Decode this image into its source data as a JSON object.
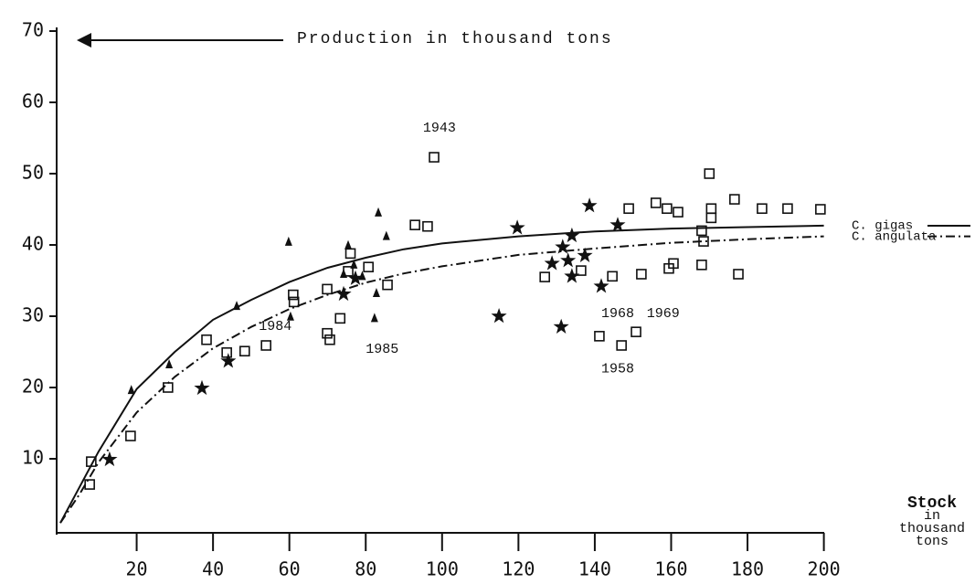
{
  "chart_data": {
    "type": "scatter",
    "title": "Production in thousand tons",
    "x_label": [
      "Stock",
      "in",
      "thousand",
      "tons"
    ],
    "xlim": [
      0,
      200
    ],
    "ylim": [
      0,
      70
    ],
    "xticks": [
      20,
      40,
      60,
      80,
      100,
      120,
      140,
      160,
      180,
      200
    ],
    "yticks": [
      10,
      20,
      30,
      40,
      50,
      60,
      70
    ],
    "series": [
      {
        "marker": "square",
        "color": "#111",
        "x": [
          7.7,
          8.1,
          18.4,
          28.2,
          38.3,
          43.6,
          48.3,
          53.9,
          61,
          61.2,
          69.9,
          69.9,
          70.6,
          73.3,
          75.4,
          76,
          80.7,
          85.7,
          92.9,
          96.2,
          97.9,
          126.9,
          136.4,
          141.2,
          147,
          150.8,
          144.6,
          148.9,
          152.2,
          156,
          158.9,
          159.4,
          160.6,
          161.8,
          168,
          168,
          168.5,
          170,
          170.5,
          170.5,
          176.6,
          177.6,
          183.8,
          190.5,
          199.1
        ],
        "values": [
          6.4,
          9.6,
          13.2,
          20,
          26.7,
          24.9,
          25.1,
          25.9,
          33,
          32,
          33.8,
          27.6,
          26.7,
          29.7,
          36.3,
          38.8,
          36.9,
          34.4,
          42.8,
          42.6,
          52.3,
          35.5,
          36.4,
          27.2,
          25.9,
          27.8,
          35.6,
          45.1,
          35.9,
          45.9,
          45.1,
          36.7,
          37.4,
          44.6,
          37.2,
          42,
          40.5,
          50,
          45.1,
          43.8,
          46.4,
          35.9,
          45.1,
          45.1,
          45
        ]
      },
      {
        "marker": "triangle",
        "color": "#111",
        "x": [
          18.6,
          28.5,
          46.2,
          59.8,
          60.3,
          75.4,
          74.2,
          76.9,
          79.1,
          82.3,
          82.8,
          83.3,
          85.4
        ],
        "values": [
          19.6,
          23.2,
          31.4,
          40.4,
          29.9,
          39.9,
          35.9,
          37.2,
          35.6,
          29.7,
          33.2,
          44.5,
          41.2
        ]
      },
      {
        "marker": "star",
        "color": "#111",
        "x": [
          12.9,
          37.1,
          44,
          74.2,
          77.3,
          114.9,
          119.7,
          128.8,
          131.2,
          131.6,
          133,
          134,
          134,
          137.4,
          138.6,
          141.7,
          146
        ],
        "values": [
          9.9,
          19.9,
          23.7,
          33.1,
          35.3,
          30,
          42.4,
          37.4,
          28.5,
          39.7,
          37.8,
          35.6,
          41.3,
          38.5,
          45.5,
          34.2,
          42.8
        ]
      },
      {
        "name": "C. gigas",
        "marker": "line",
        "dash": "solid",
        "color": "#111",
        "x": [
          0,
          5,
          10,
          20,
          30,
          40,
          50,
          60,
          70,
          80,
          90,
          100,
          120,
          140,
          160,
          180,
          200
        ],
        "values": [
          1,
          6,
          11,
          19.8,
          25,
          29.5,
          32.3,
          34.8,
          36.8,
          38.2,
          39.4,
          40.2,
          41.2,
          41.9,
          42.3,
          42.5,
          42.7
        ]
      },
      {
        "name": "C. angulata",
        "marker": "line",
        "dash": "dashdot",
        "color": "#111",
        "x": [
          0,
          5,
          10,
          20,
          30,
          40,
          50,
          60,
          70,
          80,
          90,
          100,
          120,
          140,
          160,
          180,
          200
        ],
        "values": [
          1,
          5,
          9.5,
          16.5,
          21.5,
          25.5,
          28.5,
          31,
          33,
          34.7,
          36,
          37,
          38.6,
          39.5,
          40.3,
          40.8,
          41.2
        ]
      }
    ],
    "annotations": [
      {
        "text": "1943",
        "x": 95,
        "y": 56.4
      },
      {
        "text": "1984",
        "x": 52,
        "y": 28.6
      },
      {
        "text": "1985",
        "x": 80,
        "y": 25.4
      },
      {
        "text": "1968",
        "x": 141.7,
        "y": 30.4
      },
      {
        "text": "1969",
        "x": 153.6,
        "y": 30.4
      },
      {
        "text": "1958",
        "x": 141.7,
        "y": 22.6
      }
    ]
  }
}
